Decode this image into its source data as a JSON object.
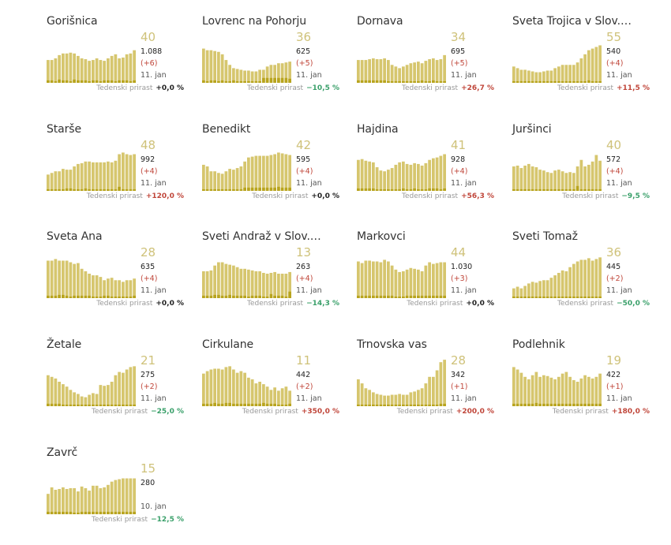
{
  "colors": {
    "bar_light": "#d6c66e",
    "bar_dark": "#b8a41e",
    "text": "#333333",
    "positive": "#c0463a",
    "negative": "#3aa06a",
    "neutral": "#222222"
  },
  "chart_data": [
    {
      "type": "bar",
      "title": "Gorišnica",
      "current": "40",
      "total": "1.088",
      "delta": "(+6)",
      "date": "11. jan",
      "weekly_label": "Tedenski prirast",
      "weekly_value": "+0,0 %",
      "weekly_trend": "neutral",
      "values": [
        28,
        28,
        30,
        34,
        36,
        36,
        37,
        36,
        33,
        30,
        29,
        27,
        28,
        30,
        28,
        27,
        30,
        33,
        35,
        30,
        31,
        35,
        36,
        40
      ],
      "new_cases": [
        3,
        3,
        2,
        4,
        3,
        3,
        2,
        4,
        3,
        3,
        3,
        2,
        3,
        3,
        2,
        3,
        3,
        3,
        2,
        3,
        3,
        3,
        2,
        3
      ]
    },
    {
      "type": "bar",
      "title": "Lovrenc na Pohorju",
      "current": "36",
      "total": "625",
      "delta": "(+5)",
      "date": "11. jan",
      "weekly_label": "Tedenski prirast",
      "weekly_value": "−10,5 %",
      "weekly_trend": "negative",
      "values": [
        42,
        40,
        40,
        39,
        38,
        35,
        28,
        22,
        18,
        17,
        16,
        15,
        15,
        14,
        14,
        16,
        16,
        20,
        22,
        22,
        24,
        24,
        25,
        26
      ],
      "new_cases": [
        3,
        2,
        3,
        3,
        2,
        3,
        2,
        2,
        3,
        2,
        2,
        2,
        2,
        2,
        2,
        2,
        6,
        6,
        6,
        6,
        6,
        6,
        6,
        5
      ]
    },
    {
      "type": "bar",
      "title": "Dornava",
      "current": "34",
      "total": "695",
      "delta": "(+5)",
      "date": "11. jan",
      "weekly_label": "Tedenski prirast",
      "weekly_value": "+26,7 %",
      "weekly_trend": "positive",
      "values": [
        28,
        28,
        28,
        29,
        30,
        29,
        29,
        30,
        28,
        22,
        20,
        18,
        20,
        22,
        24,
        25,
        26,
        24,
        27,
        29,
        30,
        28,
        29,
        34
      ],
      "new_cases": [
        3,
        3,
        3,
        3,
        3,
        3,
        3,
        3,
        2,
        2,
        2,
        2,
        2,
        2,
        2,
        2,
        2,
        3,
        2,
        2,
        3,
        2,
        2,
        2
      ]
    },
    {
      "type": "bar",
      "title": "Sveta Trojica v Slov.…",
      "current": "55",
      "total": "540",
      "delta": "(+4)",
      "date": "11. jan",
      "weekly_label": "Tedenski prirast",
      "weekly_value": "+11,5 %",
      "weekly_trend": "positive",
      "values": [
        20,
        18,
        16,
        16,
        15,
        14,
        13,
        13,
        14,
        15,
        15,
        18,
        20,
        22,
        22,
        22,
        22,
        25,
        30,
        35,
        40,
        42,
        44,
        46
      ],
      "new_cases": [
        2,
        2,
        2,
        2,
        2,
        2,
        2,
        2,
        2,
        2,
        2,
        2,
        2,
        2,
        2,
        2,
        2,
        2,
        2,
        2,
        3,
        2,
        2,
        2
      ]
    },
    {
      "type": "bar",
      "title": "Starše",
      "current": "48",
      "total": "992",
      "delta": "(+4)",
      "date": "11. jan",
      "weekly_label": "Tedenski prirast",
      "weekly_value": "+120,0 %",
      "weekly_trend": "positive",
      "values": [
        20,
        22,
        24,
        24,
        27,
        26,
        26,
        30,
        33,
        34,
        36,
        36,
        35,
        35,
        35,
        35,
        36,
        35,
        37,
        45,
        47,
        45,
        44,
        45
      ],
      "new_cases": [
        2,
        2,
        2,
        2,
        2,
        3,
        3,
        2,
        2,
        2,
        3,
        2,
        2,
        2,
        2,
        2,
        2,
        2,
        2,
        5,
        2,
        2,
        2,
        2
      ]
    },
    {
      "type": "bar",
      "title": "Benedikt",
      "current": "42",
      "total": "595",
      "delta": "(+4)",
      "date": "11. jan",
      "weekly_label": "Tedenski prirast",
      "weekly_value": "+0,0 %",
      "weekly_trend": "neutral",
      "values": [
        32,
        30,
        24,
        24,
        22,
        21,
        24,
        27,
        26,
        28,
        30,
        36,
        41,
        42,
        43,
        43,
        43,
        43,
        44,
        45,
        47,
        46,
        45,
        44
      ],
      "new_cases": [
        2,
        2,
        2,
        2,
        2,
        2,
        2,
        2,
        2,
        2,
        2,
        4,
        4,
        4,
        4,
        4,
        4,
        4,
        4,
        4,
        5,
        4,
        4,
        4
      ]
    },
    {
      "type": "bar",
      "title": "Hajdina",
      "current": "41",
      "total": "928",
      "delta": "(+4)",
      "date": "11. jan",
      "weekly_label": "Tedenski prirast",
      "weekly_value": "+56,3 %",
      "weekly_trend": "positive",
      "values": [
        38,
        39,
        37,
        36,
        35,
        29,
        25,
        24,
        26,
        28,
        32,
        35,
        36,
        33,
        32,
        34,
        33,
        31,
        34,
        38,
        40,
        41,
        43,
        45
      ],
      "new_cases": [
        3,
        3,
        3,
        3,
        3,
        2,
        2,
        2,
        2,
        2,
        2,
        2,
        3,
        2,
        2,
        3,
        2,
        2,
        2,
        3,
        3,
        3,
        2,
        3
      ]
    },
    {
      "type": "bar",
      "title": "Juršinci",
      "current": "40",
      "total": "572",
      "delta": "(+4)",
      "date": "11. jan",
      "weekly_label": "Tedenski prirast",
      "weekly_value": "−9,5 %",
      "weekly_trend": "negative",
      "values": [
        30,
        31,
        28,
        31,
        33,
        30,
        29,
        26,
        25,
        23,
        22,
        25,
        26,
        24,
        22,
        23,
        22,
        30,
        38,
        30,
        32,
        36,
        44,
        37
      ],
      "new_cases": [
        2,
        2,
        2,
        2,
        2,
        2,
        2,
        2,
        2,
        2,
        2,
        2,
        2,
        2,
        2,
        2,
        2,
        6,
        2,
        2,
        2,
        2,
        2,
        2
      ]
    },
    {
      "type": "bar",
      "title": "Sveta Ana",
      "current": "28",
      "total": "635",
      "delta": "(+4)",
      "date": "11. jan",
      "weekly_label": "Tedenski prirast",
      "weekly_value": "+0,0 %",
      "weekly_trend": "neutral",
      "values": [
        46,
        46,
        48,
        46,
        46,
        46,
        44,
        42,
        43,
        36,
        33,
        30,
        28,
        28,
        26,
        22,
        24,
        25,
        22,
        22,
        20,
        22,
        22,
        24
      ],
      "new_cases": [
        3,
        3,
        3,
        4,
        4,
        3,
        2,
        3,
        3,
        3,
        3,
        3,
        2,
        2,
        2,
        3,
        3,
        2,
        2,
        2,
        2,
        2,
        2,
        3
      ]
    },
    {
      "type": "bar",
      "title": "Sveti Andraž v Slov.…",
      "current": "13",
      "total": "263",
      "delta": "(+4)",
      "date": "11. jan",
      "weekly_label": "Tedenski prirast",
      "weekly_value": "−14,3 %",
      "weekly_trend": "negative",
      "values": [
        33,
        33,
        34,
        40,
        44,
        44,
        42,
        41,
        40,
        38,
        36,
        36,
        35,
        34,
        33,
        33,
        31,
        30,
        31,
        32,
        30,
        30,
        30,
        32
      ],
      "new_cases": [
        3,
        3,
        3,
        4,
        4,
        3,
        3,
        4,
        3,
        3,
        3,
        3,
        2,
        3,
        3,
        3,
        2,
        2,
        5,
        3,
        3,
        3,
        2,
        8
      ]
    },
    {
      "type": "bar",
      "title": "Markovci",
      "current": "44",
      "total": "1.030",
      "delta": "(+3)",
      "date": "11. jan",
      "weekly_label": "Tedenski prirast",
      "weekly_value": "+0,0 %",
      "weekly_trend": "neutral",
      "values": [
        45,
        43,
        46,
        46,
        45,
        45,
        44,
        47,
        45,
        40,
        35,
        32,
        33,
        35,
        37,
        36,
        35,
        33,
        40,
        44,
        42,
        43,
        44,
        44
      ],
      "new_cases": [
        3,
        3,
        3,
        3,
        3,
        3,
        3,
        3,
        3,
        3,
        2,
        2,
        2,
        3,
        3,
        3,
        3,
        3,
        3,
        3,
        3,
        3,
        3,
        3
      ]
    },
    {
      "type": "bar",
      "title": "Sveti Tomaž",
      "current": "36",
      "total": "445",
      "delta": "(+2)",
      "date": "11. jan",
      "weekly_label": "Tedenski prirast",
      "weekly_value": "−50,0 %",
      "weekly_trend": "negative",
      "values": [
        12,
        14,
        12,
        15,
        18,
        20,
        19,
        21,
        22,
        22,
        25,
        28,
        31,
        34,
        33,
        38,
        42,
        45,
        47,
        47,
        49,
        46,
        48,
        50
      ],
      "new_cases": [
        2,
        2,
        2,
        2,
        2,
        2,
        2,
        2,
        2,
        2,
        2,
        2,
        2,
        2,
        2,
        2,
        2,
        2,
        2,
        2,
        2,
        2,
        2,
        2
      ]
    },
    {
      "type": "bar",
      "title": "Žetale",
      "current": "21",
      "total": "275",
      "delta": "(+2)",
      "date": "11. jan",
      "weekly_label": "Tedenski prirast",
      "weekly_value": "−25,0 %",
      "weekly_trend": "negative",
      "values": [
        38,
        36,
        34,
        30,
        27,
        24,
        20,
        17,
        15,
        12,
        11,
        14,
        16,
        15,
        26,
        25,
        26,
        30,
        38,
        42,
        41,
        45,
        48,
        49
      ],
      "new_cases": [
        3,
        3,
        3,
        3,
        2,
        2,
        2,
        2,
        2,
        2,
        2,
        2,
        2,
        2,
        2,
        2,
        2,
        2,
        2,
        2,
        2,
        2,
        2,
        2
      ]
    },
    {
      "type": "bar",
      "title": "Cirkulane",
      "current": "11",
      "total": "442",
      "delta": "(+2)",
      "date": "11. jan",
      "weekly_label": "Tedenski prirast",
      "weekly_value": "+350,0 %",
      "weekly_trend": "positive",
      "values": [
        40,
        43,
        45,
        46,
        46,
        45,
        48,
        49,
        45,
        41,
        43,
        41,
        35,
        33,
        28,
        30,
        27,
        24,
        20,
        23,
        19,
        22,
        24,
        19
      ],
      "new_cases": [
        3,
        3,
        3,
        4,
        3,
        3,
        4,
        4,
        3,
        3,
        3,
        3,
        3,
        3,
        3,
        3,
        4,
        3,
        3,
        3,
        2,
        2,
        2,
        3
      ]
    },
    {
      "type": "bar",
      "title": "Trnovska vas",
      "current": "28",
      "total": "342",
      "delta": "(+1)",
      "date": "11. jan",
      "weekly_label": "Tedenski prirast",
      "weekly_value": "+200,0 %",
      "weekly_trend": "positive",
      "values": [
        33,
        28,
        22,
        20,
        17,
        15,
        14,
        13,
        13,
        14,
        14,
        15,
        14,
        14,
        17,
        18,
        20,
        22,
        28,
        36,
        36,
        44,
        54,
        57
      ],
      "new_cases": [
        2,
        2,
        2,
        2,
        2,
        2,
        2,
        2,
        2,
        2,
        2,
        2,
        2,
        2,
        2,
        2,
        2,
        2,
        2,
        2,
        2,
        2,
        3,
        3
      ]
    },
    {
      "type": "bar",
      "title": "Podlehnik",
      "current": "19",
      "total": "422",
      "delta": "(+1)",
      "date": "11. jan",
      "weekly_label": "Tedenski prirast",
      "weekly_value": "+180,0 %",
      "weekly_trend": "positive",
      "values": [
        48,
        45,
        41,
        36,
        33,
        38,
        42,
        36,
        38,
        37,
        35,
        33,
        36,
        40,
        42,
        36,
        32,
        30,
        34,
        38,
        36,
        34,
        36,
        40
      ],
      "new_cases": [
        3,
        3,
        3,
        3,
        3,
        3,
        4,
        3,
        3,
        3,
        3,
        3,
        3,
        3,
        3,
        3,
        3,
        3,
        3,
        3,
        3,
        3,
        3,
        3
      ]
    },
    {
      "type": "bar",
      "title": "Zavrč",
      "current": "15",
      "total": "280",
      "delta": "",
      "date": "10. jan",
      "weekly_label": "Tedenski prirast",
      "weekly_value": "−12,5 %",
      "weekly_trend": "negative",
      "values": [
        25,
        33,
        30,
        31,
        33,
        31,
        32,
        32,
        28,
        34,
        32,
        29,
        35,
        35,
        32,
        33,
        36,
        40,
        42,
        43,
        44,
        44,
        44,
        44
      ],
      "new_cases": [
        3,
        3,
        3,
        3,
        3,
        3,
        3,
        2,
        2,
        3,
        3,
        3,
        3,
        3,
        3,
        3,
        3,
        3,
        3,
        3,
        3,
        3,
        3,
        3
      ]
    }
  ]
}
